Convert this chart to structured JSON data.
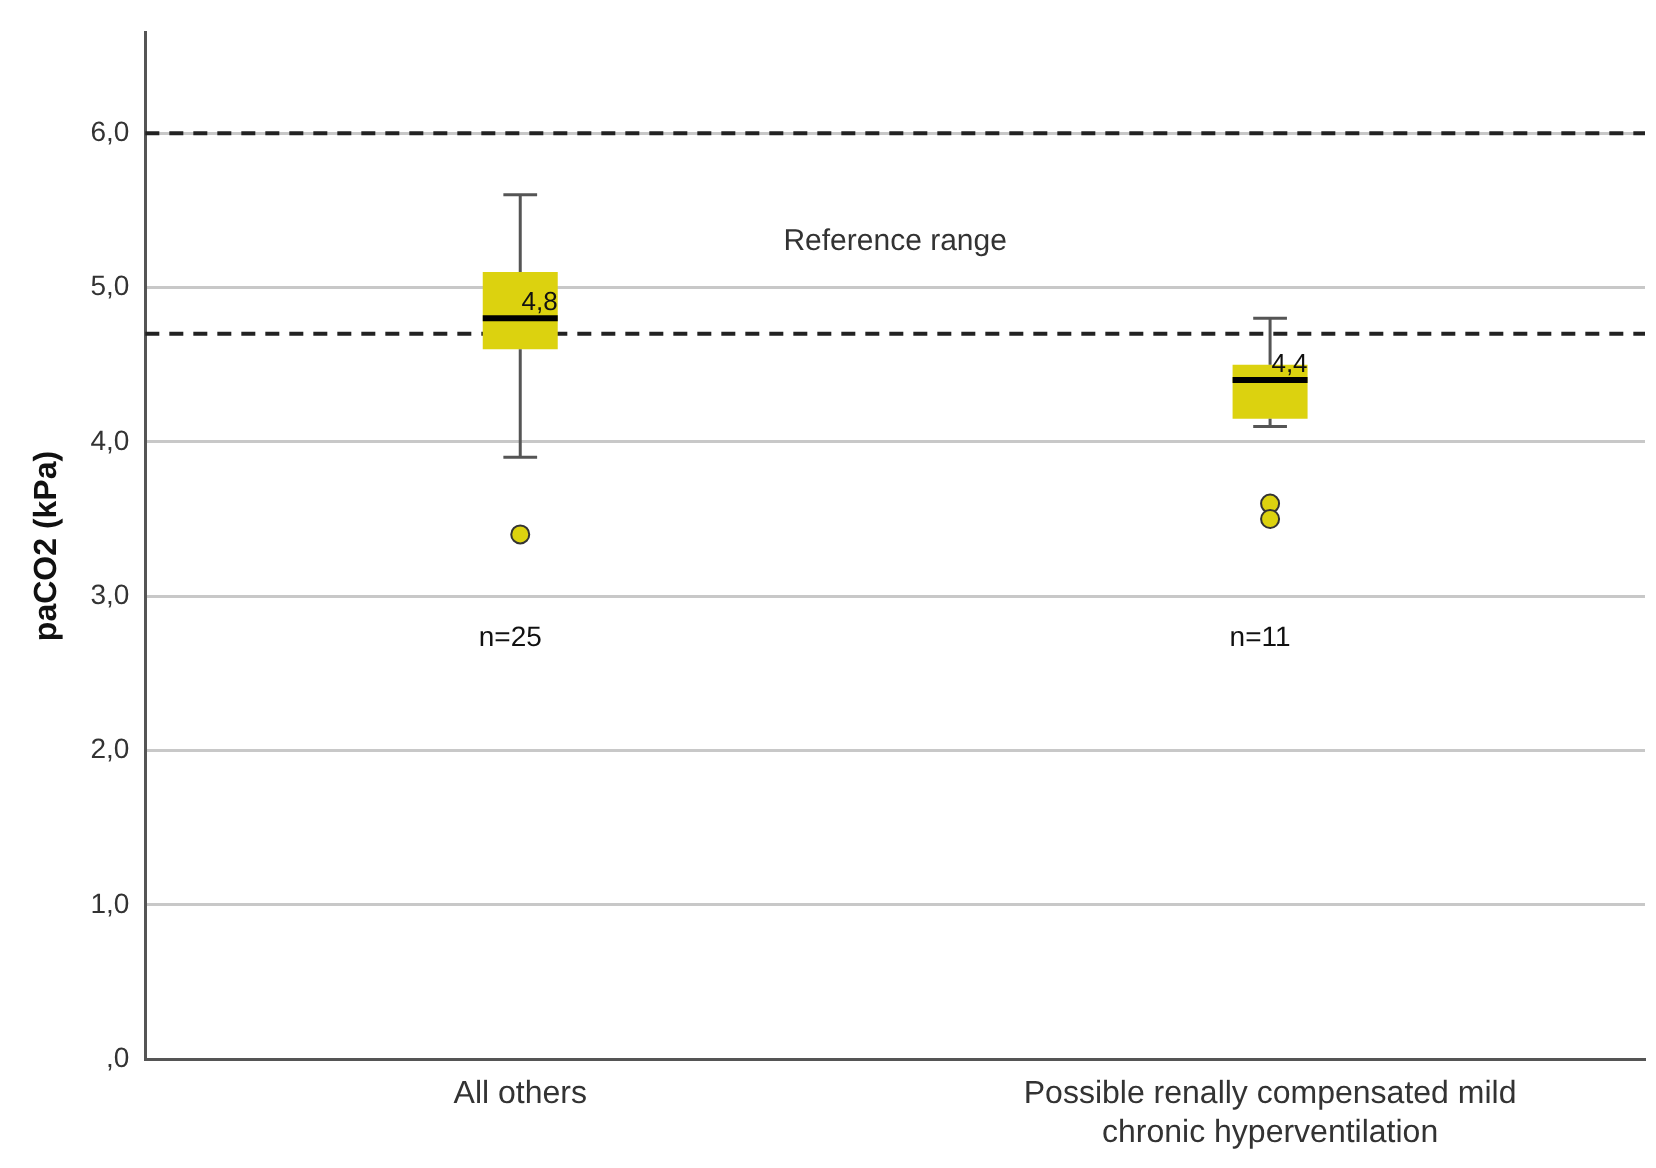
{
  "chart_data": {
    "type": "box",
    "ylabel": "paCO2 (kPa)",
    "categories": [
      "All others",
      "Possible renally compensated mild chronic hyperventilation"
    ],
    "boxes": [
      {
        "low": 3.9,
        "q1": 4.6,
        "median": 4.8,
        "q3": 5.1,
        "high": 5.6,
        "outliers": [
          3.4
        ]
      },
      {
        "low": 4.1,
        "q1": 4.15,
        "median": 4.4,
        "q3": 4.5,
        "high": 4.8,
        "outliers": [
          3.6,
          3.5
        ]
      }
    ],
    "color": "#dcd20f",
    "ylim": [
      0,
      6.65
    ],
    "yticks": [
      {
        "value": 0,
        "label": ",0"
      },
      {
        "value": 1,
        "label": "1,0"
      },
      {
        "value": 2,
        "label": "2,0"
      },
      {
        "value": 3,
        "label": "3,0"
      },
      {
        "value": 4,
        "label": "4,0"
      },
      {
        "value": 5,
        "label": "5,0"
      },
      {
        "value": 6,
        "label": "6,0"
      }
    ],
    "grid": "y",
    "ref_lines": [
      {
        "axis": "y",
        "value": 6.0,
        "line_style": "dashed",
        "color": "#222222"
      },
      {
        "axis": "y",
        "value": 4.7,
        "line_style": "dashed",
        "color": "#222222"
      }
    ],
    "annotations": [
      "Reference range",
      {
        "text": "4,8",
        "x": "All others",
        "y": 4.8
      },
      {
        "text": "4,4",
        "x": "Possible renally compensated mild chronic hyperventilation",
        "y": 4.4
      },
      "n=25",
      "n=11"
    ]
  }
}
